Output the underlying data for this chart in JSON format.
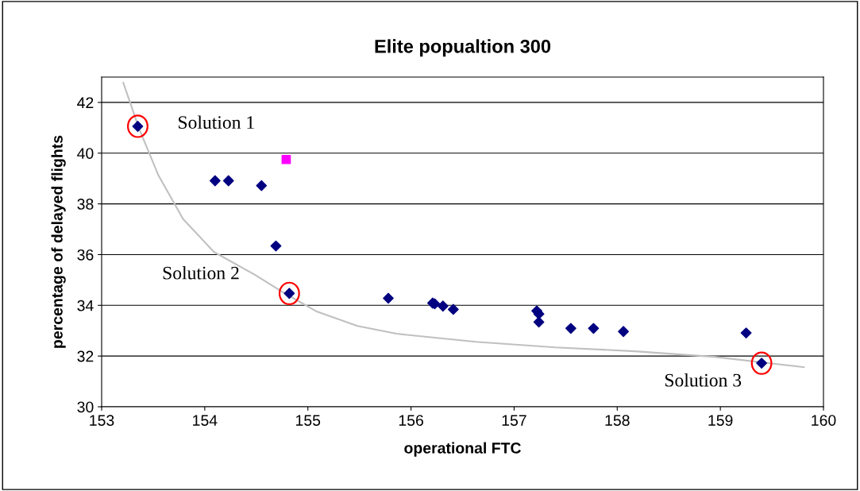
{
  "chart_data": {
    "type": "scatter",
    "title": "Elite popualtion 300",
    "xlabel": "operational FTC",
    "ylabel": "percentage of delayed flights",
    "xlim": [
      153,
      160
    ],
    "xticks": [
      153,
      154,
      155,
      156,
      157,
      158,
      159,
      160
    ],
    "ylim": [
      30,
      43
    ],
    "yticks": [
      30,
      32,
      34,
      36,
      38,
      40,
      42
    ],
    "grid": "y",
    "legend": false,
    "series": [
      {
        "type": "line",
        "color": "#c0c0c0",
        "marker": "none",
        "line_style": "solid",
        "x": [
          153.21,
          153.36,
          153.55,
          153.79,
          154.09,
          154.48,
          154.79,
          155.09,
          155.48,
          155.86,
          156.63,
          157.4,
          158.17,
          158.94,
          159.81
        ],
        "values": [
          42.78,
          41.0,
          39.13,
          37.4,
          36.1,
          35.22,
          34.44,
          33.75,
          33.19,
          32.88,
          32.56,
          32.34,
          32.19,
          31.97,
          31.56
        ]
      },
      {
        "color": "#000080",
        "marker": "diamond",
        "x": [
          153.35,
          154.1,
          154.23,
          154.55,
          154.69,
          154.82,
          155.78,
          156.21,
          156.23,
          156.31,
          156.41,
          157.22,
          157.24,
          157.24,
          157.55,
          157.77,
          158.06,
          159.25,
          159.4
        ],
        "values": [
          41.06,
          38.91,
          38.91,
          38.72,
          36.34,
          34.47,
          34.28,
          34.09,
          34.06,
          33.97,
          33.84,
          33.78,
          33.66,
          33.34,
          33.09,
          33.09,
          32.97,
          32.91,
          31.72
        ]
      },
      {
        "color": "#ff00ff",
        "marker": "square",
        "x": [
          154.79
        ],
        "values": [
          39.75
        ]
      }
    ],
    "annotations": [
      {
        "text": "Solution 1",
        "x": 153.35,
        "y": 41.06
      },
      {
        "text": "Solution 2",
        "x": 154.82,
        "y": 34.47
      },
      {
        "text": "Solution 3",
        "x": 159.4,
        "y": 31.72
      }
    ]
  }
}
